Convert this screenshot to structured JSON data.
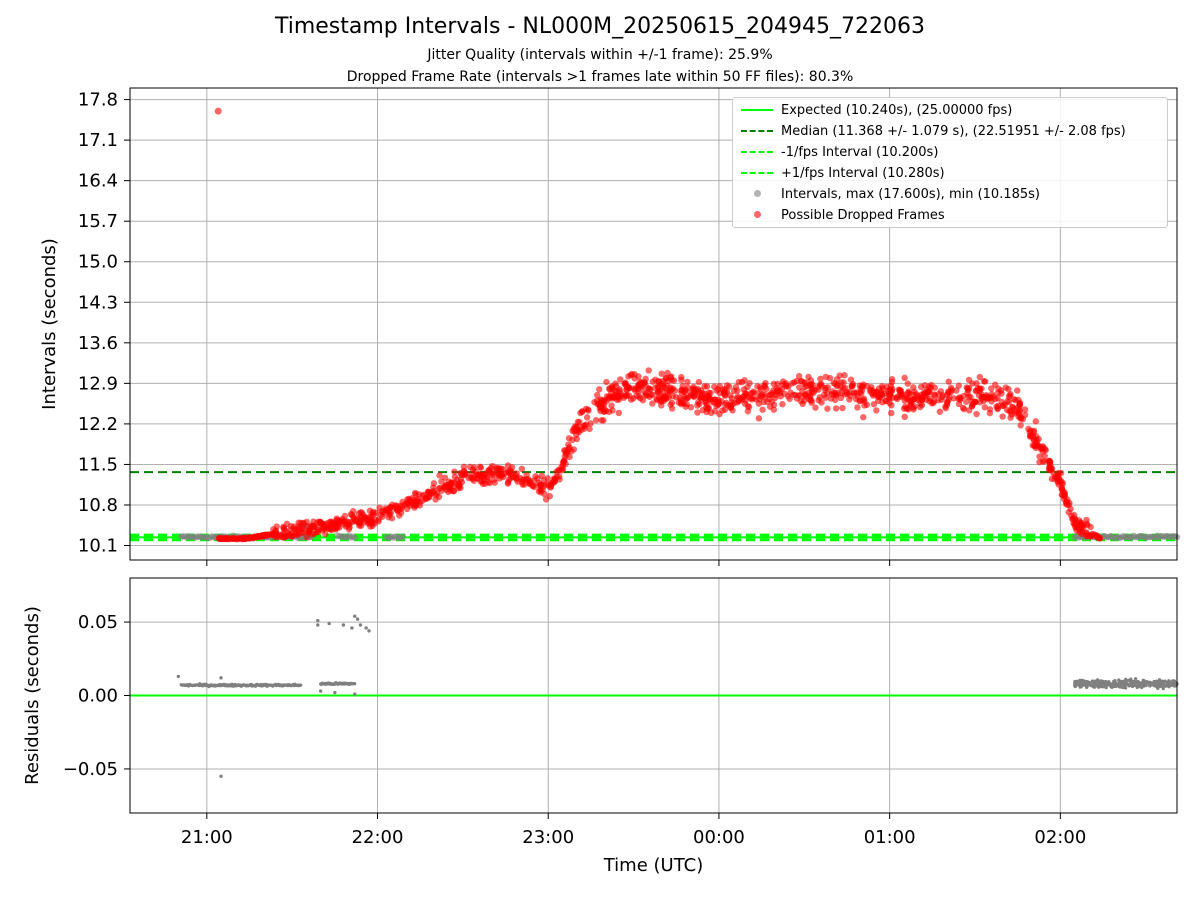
{
  "title": "Timestamp Intervals - NL000M_20250615_204945_722063",
  "subtitle_jitter": "Jitter Quality (intervals within +/-1 frame): 25.9%",
  "subtitle_dropped": "Dropped Frame Rate (intervals >1 frames late within 50 FF files): 80.3%",
  "legend": {
    "expected": "Expected (10.240s), (25.00000 fps)",
    "median": "Median (11.368 +/- 1.079 s), (22.51951 +/- 2.08 fps)",
    "minus": "-1/fps Interval (10.200s)",
    "plus": "+1/fps Interval (10.280s)",
    "intervals": "Intervals, max (17.600s), min (10.185s)",
    "dropped": "Possible Dropped Frames"
  },
  "colors": {
    "expected": "#00ff00",
    "median": "#008000",
    "jitter_band": "#00ff00",
    "intervals": "#808080",
    "dropped": "#ff0000",
    "grid": "#b0b0b0"
  },
  "chart_data": [
    {
      "type": "scatter",
      "ylabel": "Intervals (seconds)",
      "xlim": [
        "20:33",
        "02:41"
      ],
      "ylim": [
        9.85,
        18.0
      ],
      "yticks": [
        "10.1",
        "10.8",
        "11.5",
        "12.2",
        "12.9",
        "13.6",
        "14.3",
        "15.0",
        "15.7",
        "16.4",
        "17.1",
        "17.8"
      ],
      "grid": true,
      "legend_position": "top-right",
      "reference_lines": [
        {
          "name": "Expected",
          "y": 10.24,
          "style": "solid"
        },
        {
          "name": "Median",
          "y": 11.368,
          "style": "dashed"
        },
        {
          "name": "-1/fps Interval",
          "y": 10.2,
          "style": "dashed"
        },
        {
          "name": "+1/fps Interval",
          "y": 10.28,
          "style": "dashed"
        }
      ],
      "series": [
        {
          "name": "Intervals",
          "segments": [
            {
              "t": [
                "20:51",
                "21:37"
              ],
              "y": 10.247
            },
            {
              "t": [
                "21:34",
                "21:38"
              ],
              "y": 10.42
            },
            {
              "t": [
                "21:46",
                "21:52"
              ],
              "y": 10.25
            },
            {
              "t": [
                "22:03",
                "22:09"
              ],
              "y": 10.25
            },
            {
              "t": [
                "02:05",
                "02:41"
              ],
              "y": 10.248
            }
          ]
        },
        {
          "name": "Possible Dropped Frames",
          "outliers": [
            {
              "t": "21:04",
              "y": 17.6
            }
          ],
          "profile_envelope": [
            {
              "t": "21:04",
              "y": 10.22
            },
            {
              "t": "21:14",
              "y": 10.22
            },
            {
              "t": "21:35",
              "y": 10.4
            },
            {
              "t": "21:45",
              "y": 10.45
            },
            {
              "t": "22:00",
              "y": 10.6
            },
            {
              "t": "22:15",
              "y": 10.9
            },
            {
              "t": "22:30",
              "y": 11.25
            },
            {
              "t": "22:45",
              "y": 11.35
            },
            {
              "t": "23:00",
              "y": 11.1
            },
            {
              "t": "23:05",
              "y": 11.5
            },
            {
              "t": "23:10",
              "y": 12.1
            },
            {
              "t": "23:20",
              "y": 12.6
            },
            {
              "t": "23:30",
              "y": 12.85
            },
            {
              "t": "00:00",
              "y": 12.6
            },
            {
              "t": "00:30",
              "y": 12.8
            },
            {
              "t": "01:00",
              "y": 12.7
            },
            {
              "t": "01:30",
              "y": 12.7
            },
            {
              "t": "01:45",
              "y": 12.5
            },
            {
              "t": "01:55",
              "y": 11.6
            },
            {
              "t": "02:00",
              "y": 11.2
            },
            {
              "t": "02:05",
              "y": 10.5
            },
            {
              "t": "02:14",
              "y": 10.22
            }
          ]
        }
      ]
    },
    {
      "type": "scatter",
      "xlabel": "Time (UTC)",
      "ylabel": "Residuals (seconds)",
      "xticks": [
        "21:00",
        "22:00",
        "23:00",
        "00:00",
        "01:00",
        "02:00"
      ],
      "xlim": [
        "20:33",
        "02:41"
      ],
      "ylim": [
        -0.08,
        0.08
      ],
      "yticks": [
        "−0.05",
        "0.00",
        "0.05"
      ],
      "grid": true,
      "reference_lines": [
        {
          "name": "zero",
          "y": 0.0,
          "style": "solid"
        }
      ],
      "series": [
        {
          "name": "Residuals",
          "segments": [
            {
              "t": [
                "20:51",
                "21:33"
              ],
              "y": 0.007
            },
            {
              "t": [
                "21:40",
                "21:52"
              ],
              "y": 0.008
            },
            {
              "t": [
                "02:05",
                "02:41"
              ],
              "y": 0.008
            }
          ],
          "outliers": [
            {
              "t": "20:50",
              "y": 0.013
            },
            {
              "t": "21:05",
              "y": -0.055
            },
            {
              "t": "21:05",
              "y": 0.012
            },
            {
              "t": "21:39",
              "y": 0.051
            },
            {
              "t": "21:39",
              "y": 0.048
            },
            {
              "t": "21:43",
              "y": 0.049
            },
            {
              "t": "21:48",
              "y": 0.048
            },
            {
              "t": "21:51",
              "y": 0.046
            },
            {
              "t": "21:52",
              "y": 0.054
            },
            {
              "t": "21:53",
              "y": 0.052
            },
            {
              "t": "21:54",
              "y": 0.048
            },
            {
              "t": "21:56",
              "y": 0.046
            },
            {
              "t": "21:57",
              "y": 0.044
            },
            {
              "t": "21:52",
              "y": 0.001
            },
            {
              "t": "21:40",
              "y": 0.003
            },
            {
              "t": "21:45",
              "y": 0.002
            }
          ]
        }
      ]
    }
  ]
}
